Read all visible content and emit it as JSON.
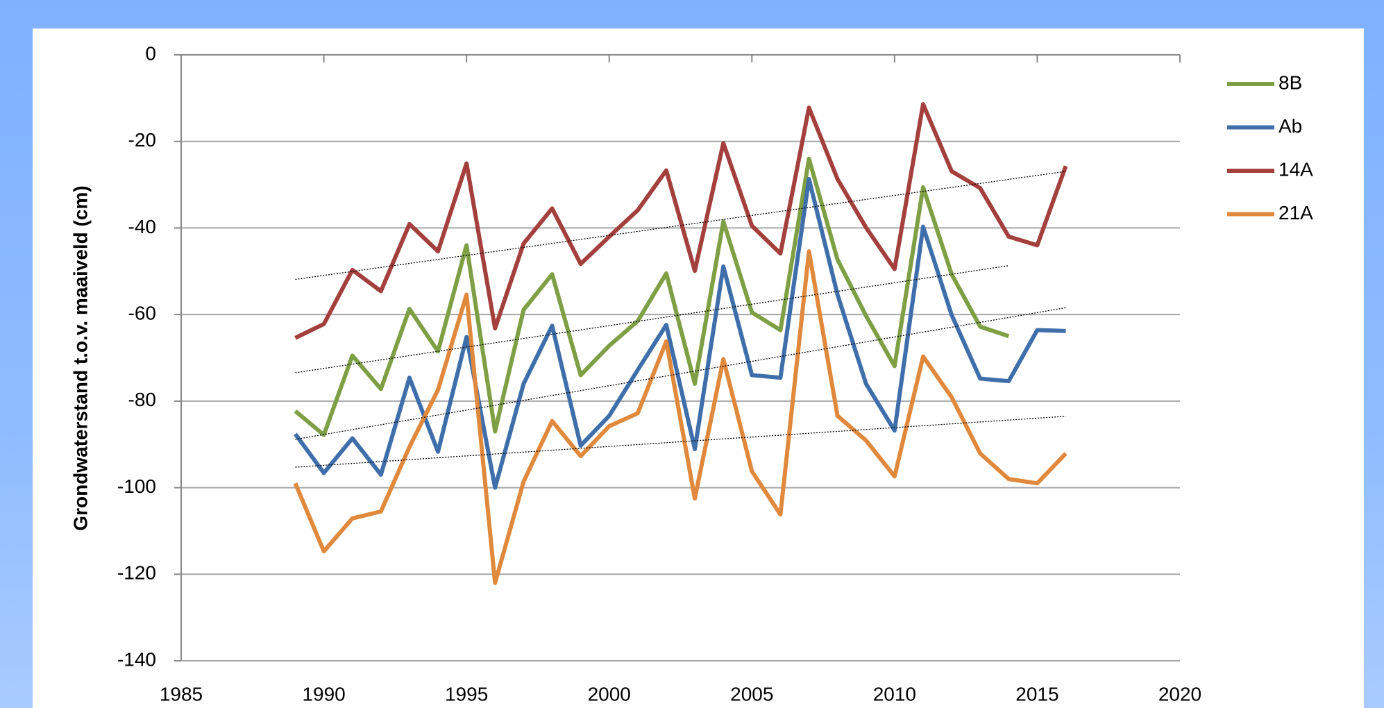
{
  "chart_data": {
    "type": "line",
    "y_label": "Grondwaterstand t.o.v. maaiveld (cm)",
    "x": [
      1989,
      1990,
      1991,
      1992,
      1993,
      1994,
      1995,
      1996,
      1997,
      1998,
      1999,
      2000,
      2001,
      2002,
      2003,
      2004,
      2005,
      2006,
      2007,
      2008,
      2009,
      2010,
      2011,
      2012,
      2013,
      2014,
      2015,
      2016
    ],
    "series": [
      {
        "name": "8B",
        "color": "#7f9f45",
        "values": [
          -82.3,
          -87.8,
          -69.5,
          -77.2,
          -58.7,
          -68.5,
          -44,
          -87,
          -58.9,
          -50.7,
          -74,
          -67.2,
          -61.5,
          -50.5,
          -76,
          -38.5,
          -59.5,
          -63.6,
          -24,
          -47.3,
          -60.3,
          -71.9,
          -30.6,
          -50.7,
          -62.8,
          -65,
          null,
          null
        ]
      },
      {
        "name": "Ab",
        "color": "#3f6fab",
        "values": [
          -87.6,
          -96.6,
          -88.6,
          -97,
          -74.6,
          -91.7,
          -65.2,
          -100,
          -76,
          -62.6,
          -90.3,
          -83.4,
          -72.8,
          -62.4,
          -91.1,
          -48.9,
          -74,
          -74.6,
          -28.7,
          -55.4,
          -76,
          -86.8,
          -39.7,
          -60.1,
          -74.8,
          -75.4,
          -63.6,
          -63.8
        ]
      },
      {
        "name": "14A",
        "color": "#a33f3d",
        "values": [
          -65.4,
          -62.2,
          -49.7,
          -54.6,
          -39.1,
          -45.4,
          -25.1,
          -63.2,
          -43.6,
          -35.5,
          -48.3,
          -42,
          -35.9,
          -26.7,
          -49.9,
          -20.4,
          -39.5,
          -45.9,
          -12.2,
          -28.7,
          -39.9,
          -49.5,
          -11.4,
          -26.9,
          -30.8,
          -42,
          -44,
          -25.7
        ]
      },
      {
        "name": "21A",
        "color": "#e0893d",
        "values": [
          -99,
          -114.7,
          -107.1,
          -105.5,
          -90.6,
          -77.4,
          -55.4,
          -122,
          -98.6,
          -84.6,
          -92.7,
          -85.8,
          -82.8,
          -66.2,
          -102.5,
          -70.3,
          -96.2,
          -106.2,
          -45.4,
          -83.4,
          -89.1,
          -97.4,
          -69.7,
          -79.1,
          -92.1,
          -98,
          -99,
          -92.1
        ]
      }
    ],
    "xlim": [
      1985,
      2020
    ],
    "xticks": [
      1985,
      1990,
      1995,
      2000,
      2005,
      2010,
      2015,
      2020
    ],
    "ylim": [
      -140,
      0
    ],
    "yticks": [
      0,
      -20,
      -40,
      -60,
      -80,
      -100,
      -120,
      -140
    ],
    "grid": true,
    "trendlines": true,
    "legend": "right"
  }
}
